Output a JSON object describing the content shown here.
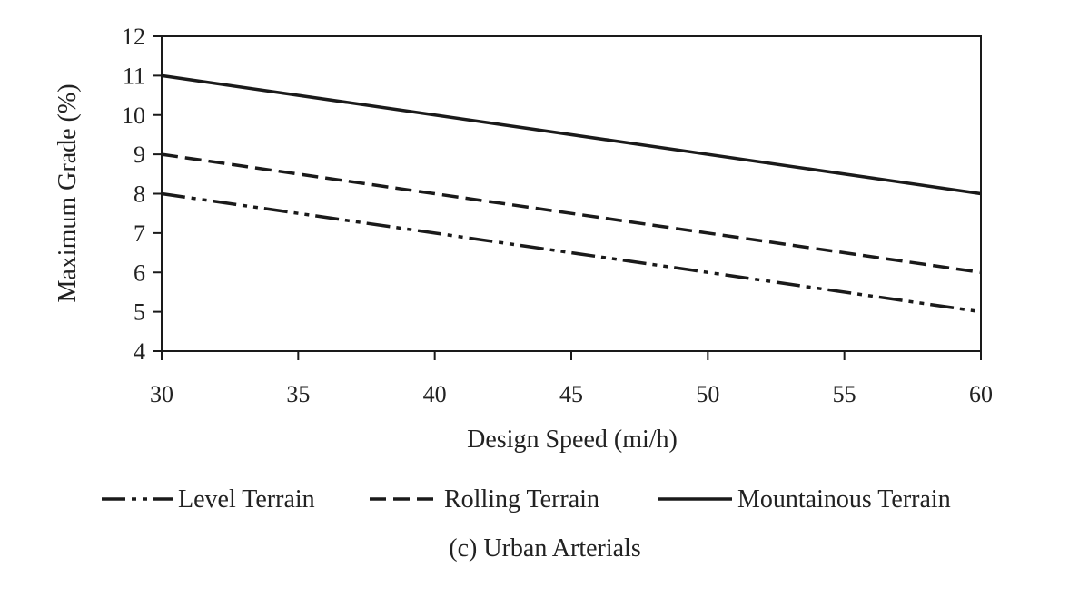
{
  "chart_data": {
    "type": "line",
    "title": "",
    "caption": "(c) Urban Arterials",
    "xlabel": "Design Speed (mi/h)",
    "ylabel": "Maximum Grade (%)",
    "xlim": [
      30,
      60
    ],
    "ylim": [
      4,
      12
    ],
    "xticks": [
      30,
      35,
      40,
      45,
      50,
      55,
      60
    ],
    "yticks": [
      4,
      5,
      6,
      7,
      8,
      9,
      10,
      11,
      12
    ],
    "grid": false,
    "legend_position": "bottom",
    "series": [
      {
        "name": "Level Terrain",
        "style": "dash-dot-dot",
        "color": "#1a1a1a",
        "x": [
          30,
          60
        ],
        "y": [
          8,
          5
        ]
      },
      {
        "name": "Rolling Terrain",
        "style": "dashed",
        "color": "#1a1a1a",
        "x": [
          30,
          60
        ],
        "y": [
          9,
          6
        ]
      },
      {
        "name": "Mountainous Terrain",
        "style": "solid",
        "color": "#1a1a1a",
        "x": [
          30,
          60
        ],
        "y": [
          11,
          8
        ]
      }
    ]
  }
}
